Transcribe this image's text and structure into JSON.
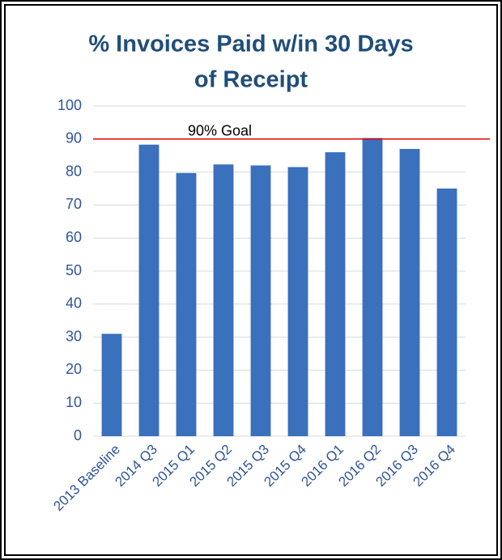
{
  "chart_data": {
    "type": "bar",
    "title": [
      "% Invoices Paid w/in 30 Days",
      "of Receipt"
    ],
    "categories": [
      "2013 Baseline",
      "2014 Q3",
      "2015 Q1",
      "2015 Q2",
      "2015 Q3",
      "2015 Q4",
      "2016 Q1",
      "2016 Q2",
      "2016 Q3",
      "2016 Q4"
    ],
    "values": [
      31,
      88.3,
      79.7,
      82.3,
      82,
      81.5,
      86,
      90.3,
      87,
      75
    ],
    "color": "#3a70bc",
    "ylim": [
      0,
      100
    ],
    "yticks": [
      0,
      10,
      20,
      30,
      40,
      50,
      60,
      70,
      80,
      90,
      100
    ],
    "grid": true,
    "goal": {
      "value": 90,
      "label": "90% Goal",
      "color": "#e00000"
    }
  }
}
